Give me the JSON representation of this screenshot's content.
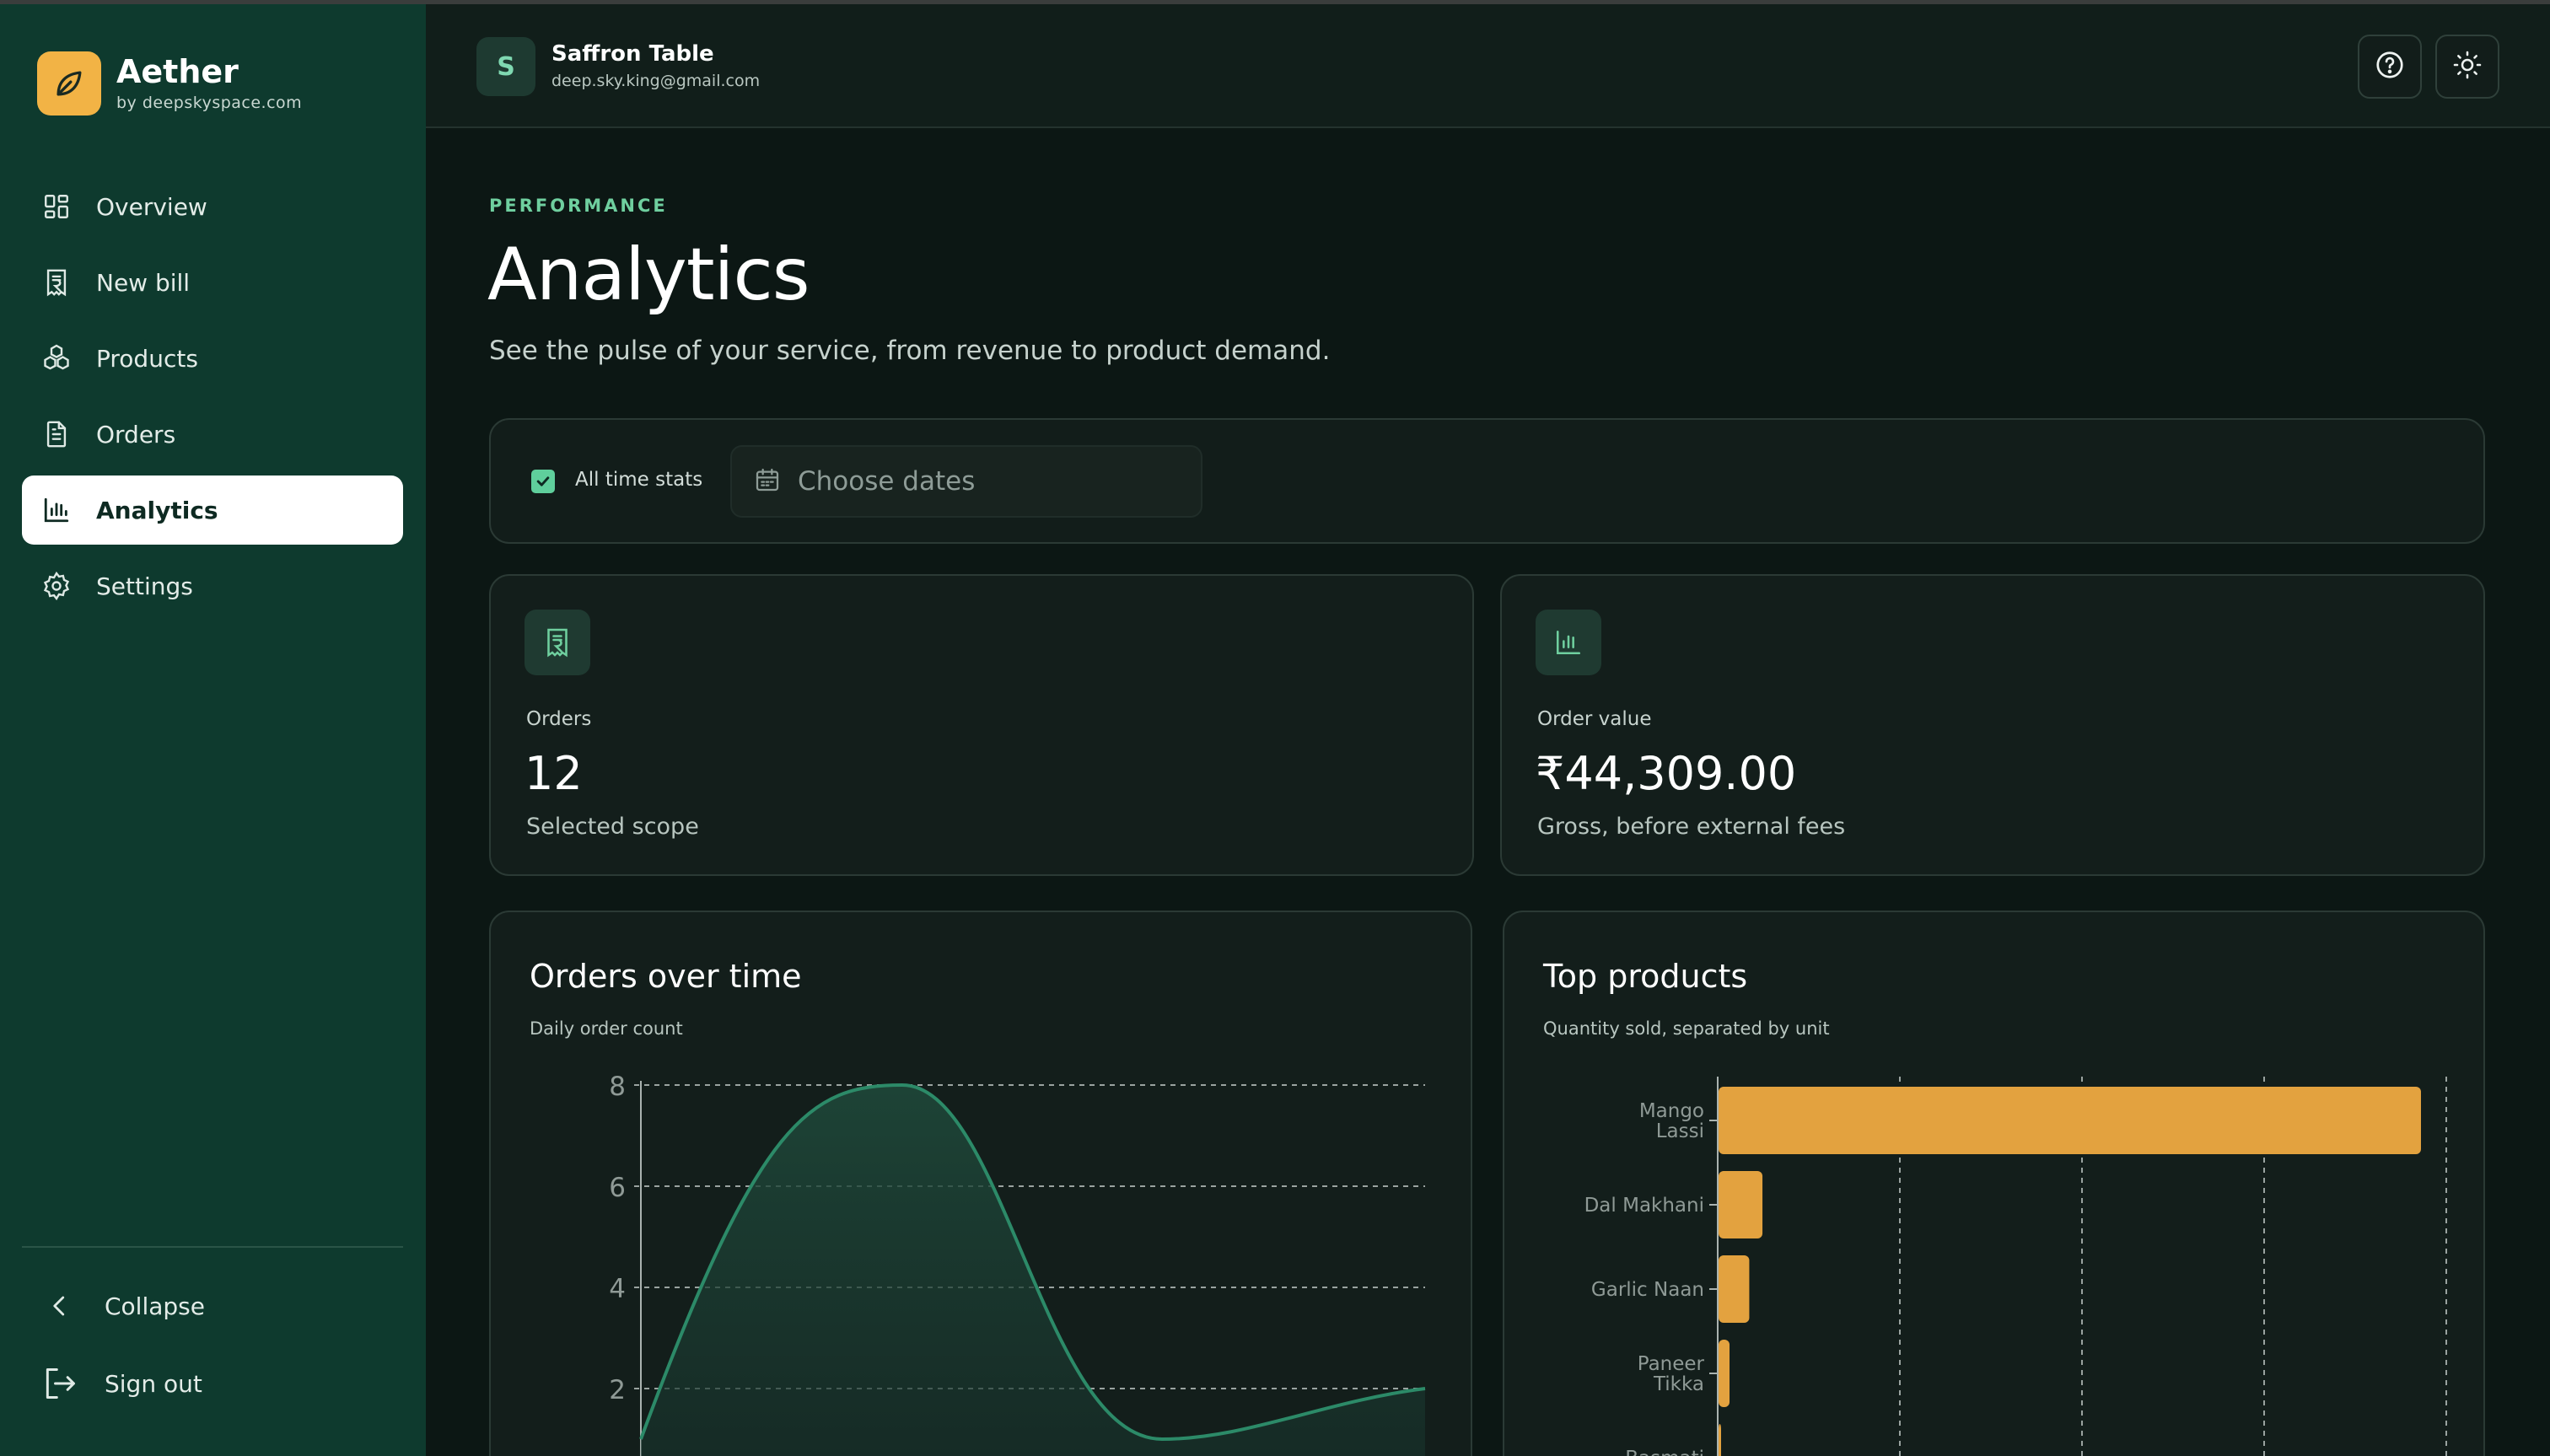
{
  "brand": {
    "name": "Aether",
    "sub": "by deepskyspace.com"
  },
  "sidebar": {
    "items": [
      {
        "label": "Overview",
        "icon": "grid-icon",
        "active": false
      },
      {
        "label": "New bill",
        "icon": "receipt-icon",
        "active": false
      },
      {
        "label": "Products",
        "icon": "products-icon",
        "active": false
      },
      {
        "label": "Orders",
        "icon": "document-icon",
        "active": false
      },
      {
        "label": "Analytics",
        "icon": "bar-chart-icon",
        "active": true
      },
      {
        "label": "Settings",
        "icon": "gear-icon",
        "active": false
      }
    ],
    "collapse_label": "Collapse",
    "signout_label": "Sign out"
  },
  "header": {
    "avatar_letter": "S",
    "user_name": "Saffron Table",
    "user_email": "deep.sky.king@gmail.com"
  },
  "page": {
    "eyebrow": "PERFORMANCE",
    "title": "Analytics",
    "subtitle": "See the pulse of your service, from revenue to product demand."
  },
  "filters": {
    "all_time_label": "All time stats",
    "all_time_checked": true,
    "date_placeholder": "Choose dates"
  },
  "stats": [
    {
      "label": "Orders",
      "value": "12",
      "note": "Selected scope",
      "icon": "receipt-icon"
    },
    {
      "label": "Order value",
      "value": "₹44,309.00",
      "note": "Gross, before external fees",
      "icon": "bar-chart-icon"
    }
  ],
  "colors": {
    "sidebar": "#0e3a2e",
    "accent": "#5fcf9c",
    "brand": "#f2b345",
    "line": "#2c8a68",
    "bar": "#e3a23f"
  },
  "chart_data": [
    {
      "type": "area",
      "title": "Orders over time",
      "subtitle": "Daily order count",
      "y_ticks": [
        "8",
        "6",
        "4",
        "2"
      ],
      "ylim": [
        0,
        8
      ],
      "grid": true,
      "series": [
        {
          "values": [
            1,
            8,
            1,
            2
          ]
        }
      ]
    },
    {
      "type": "bar",
      "orientation": "horizontal",
      "title": "Top products",
      "subtitle": "Quantity sold, separated by unit",
      "categories": [
        "Mango Lassi",
        "Dal Makhani",
        "Garlic Naan",
        "Paneer Tikka",
        "Basmati"
      ],
      "values": [
        16,
        1,
        0.7,
        0.25,
        0.05
      ],
      "grid": true
    }
  ]
}
